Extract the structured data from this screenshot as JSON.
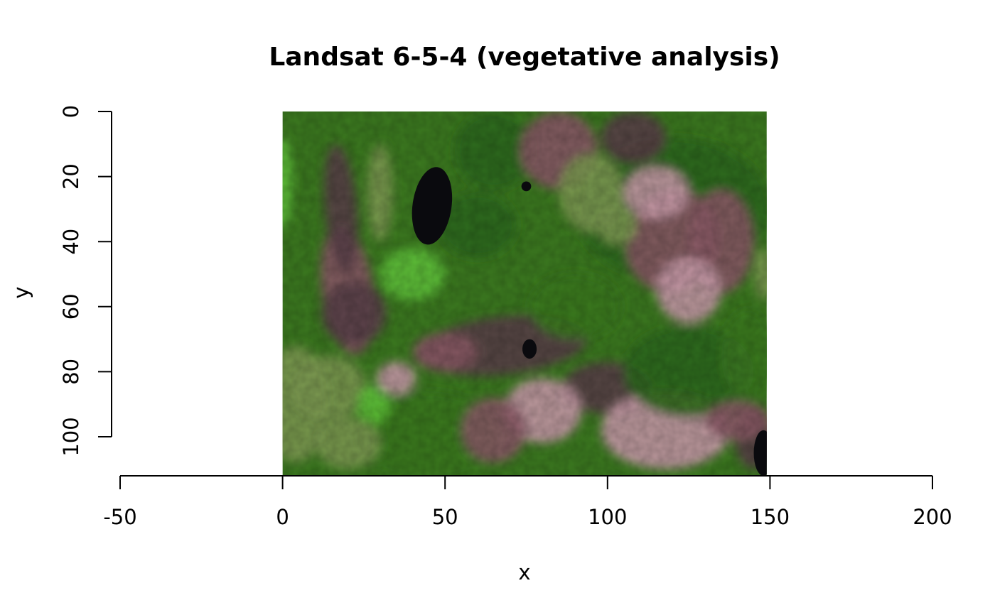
{
  "chart_data": {
    "type": "heatmap",
    "title": "Landsat 6-5-4 (vegetative analysis)",
    "xlabel": "x",
    "ylabel": "y",
    "xlim": [
      -50,
      200
    ],
    "ylim": [
      0,
      112
    ],
    "y_reversed": true,
    "x_ticks": [
      "-50",
      "0",
      "50",
      "100",
      "150",
      "200"
    ],
    "y_ticks": [
      "0",
      "20",
      "40",
      "60",
      "80",
      "100"
    ],
    "raster": {
      "x_extent": [
        0,
        149
      ],
      "y_extent": [
        0,
        112
      ],
      "bands": "6-5-4",
      "colors": {
        "dark_green": "#2f6a1c",
        "forest_green": "#3c7a20",
        "bright_green": "#5fc43a",
        "olive": "#7d9a52",
        "mauve": "#8a5a66",
        "dark_mauve": "#5a4048",
        "pink": "#c89aa8",
        "water": "#0a0a0e"
      }
    }
  }
}
